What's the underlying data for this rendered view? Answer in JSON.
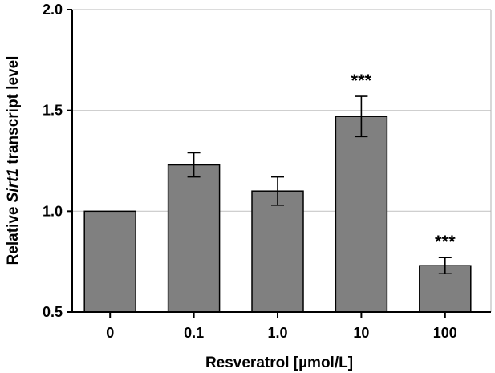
{
  "chart_data": {
    "type": "bar",
    "categories": [
      "0",
      "0.1",
      "1.0",
      "10",
      "100"
    ],
    "values": [
      1.0,
      1.23,
      1.1,
      1.47,
      0.73
    ],
    "errors": [
      0,
      0.06,
      0.07,
      0.1,
      0.04
    ],
    "annotations": [
      "",
      "",
      "",
      "***",
      "***"
    ],
    "xlabel": "Resveratrol [µmol/L]",
    "ylabel_prefix": "Relative ",
    "ylabel_gene": "Sirt1",
    "ylabel_suffix": " transcript level",
    "ylim": [
      0.5,
      2.0
    ],
    "yticks": [
      "0.5",
      "1.0",
      "1.5",
      "2.0"
    ],
    "grid": "horizontal",
    "bar_color": "#808080",
    "grid_color": "#c8c8c8"
  }
}
